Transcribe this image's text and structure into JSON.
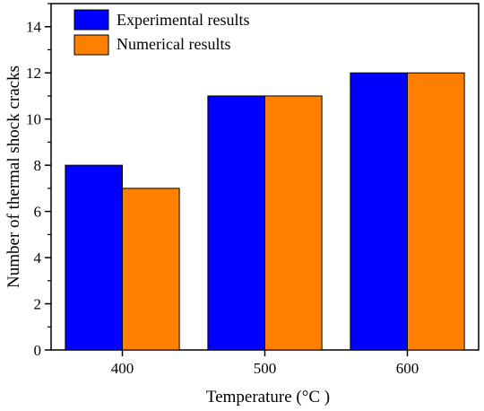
{
  "chart_data": {
    "type": "bar",
    "categories": [
      "400",
      "500",
      "600"
    ],
    "series": [
      {
        "name": "Experimental results",
        "values": [
          8,
          11,
          12
        ],
        "color": "#0000ff"
      },
      {
        "name": "Numerical results",
        "values": [
          7,
          11,
          12
        ],
        "color": "#ff8000"
      }
    ],
    "xlabel": "Temperature (°C )",
    "ylabel": "Number of thermal shock cracks",
    "ylim": [
      0,
      15
    ],
    "yticks": [
      0,
      2,
      4,
      6,
      8,
      10,
      12,
      14
    ],
    "legend_position": "top-left",
    "grid": false
  }
}
